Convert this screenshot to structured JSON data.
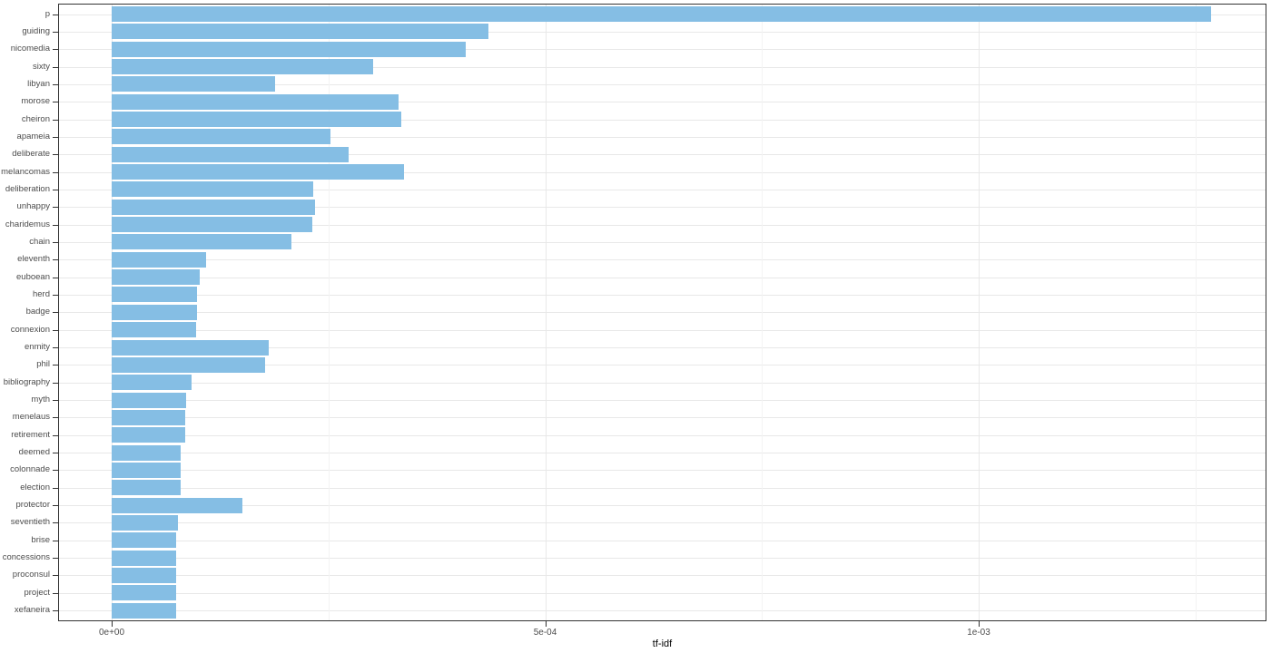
{
  "chart_data": {
    "type": "bar",
    "orientation": "horizontal",
    "xlabel": "tf-idf",
    "categories": [
      "p",
      "guiding",
      "nicomedia",
      "sixty",
      "libyan",
      "morose",
      "cheiron",
      "apameia",
      "deliberate",
      "melancomas",
      "deliberation",
      "unhappy",
      "charidemus",
      "chain",
      "eleventh",
      "euboean",
      "herd",
      "badge",
      "connexion",
      "enmity",
      "phil",
      "bibliography",
      "myth",
      "menelaus",
      "retirement",
      "deemed",
      "colonnade",
      "election",
      "protector",
      "seventieth",
      "brise",
      "concessions",
      "proconsul",
      "project",
      "xefaneira"
    ],
    "values": [
      0.001268,
      0.000434,
      0.000408,
      0.000301,
      0.000188,
      0.000331,
      0.000334,
      0.000252,
      0.000273,
      0.000337,
      0.000232,
      0.000235,
      0.000231,
      0.000207,
      0.000109,
      0.000101,
      9.8e-05,
      9.8e-05,
      9.7e-05,
      0.000181,
      0.000177,
      9.2e-05,
      8.6e-05,
      8.5e-05,
      8.5e-05,
      8e-05,
      8e-05,
      8e-05,
      0.000151,
      7.6e-05,
      7.4e-05,
      7.4e-05,
      7.4e-05,
      7.4e-05,
      7.4e-05
    ],
    "x_ticks": [
      {
        "value": 0,
        "label": "0e+00"
      },
      {
        "value": 0.0005,
        "label": "5e-04"
      },
      {
        "value": 0.001,
        "label": "1e-03"
      }
    ],
    "x_minor_ticks": [
      0.00025,
      0.00075,
      0.00125
    ],
    "xlim": [
      0,
      0.00133
    ],
    "grid": true,
    "legend": false,
    "colors": {
      "bar_fill": "#85BEE4",
      "panel_border": "#333333",
      "grid_major": "#E8E8E8",
      "grid_minor": "#F3F3F3",
      "tick_mark": "#333333",
      "tick_label": "#4D4D4D",
      "axis_title": "#000000",
      "background": "#FFFFFF"
    }
  }
}
